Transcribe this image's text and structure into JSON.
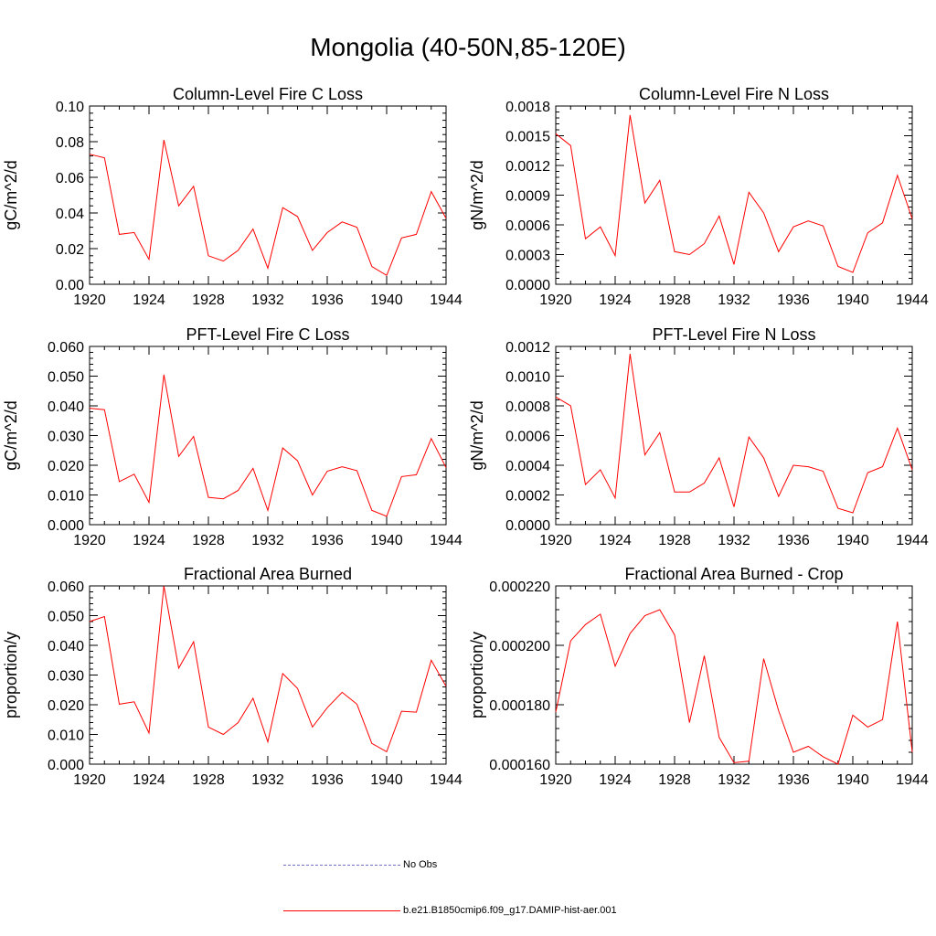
{
  "title": "Mongolia (40-50N,85-120E)",
  "colors": {
    "series": "#ff0000",
    "obs": "#7070c8",
    "axis": "#000000"
  },
  "legend": [
    {
      "label": "No Obs",
      "style": "dashed",
      "color": "#7070c8"
    },
    {
      "label": "b.e21.B1850cmip6.f09_g17.DAMIP-hist-aer.001",
      "style": "solid",
      "color": "#ff0000"
    }
  ],
  "chart_data": [
    {
      "type": "line",
      "title": "Column-Level Fire C Loss",
      "ylabel": "gC/m^2/d",
      "xlim": [
        1920,
        1944
      ],
      "ylim": [
        0,
        0.1
      ],
      "xticks": [
        "1920",
        "1924",
        "1928",
        "1932",
        "1936",
        "1940",
        "1944"
      ],
      "yticks": [
        "0.00",
        "0.02",
        "0.04",
        "0.06",
        "0.08",
        "0.10"
      ],
      "x": [
        1920,
        1921,
        1922,
        1923,
        1924,
        1925,
        1926,
        1927,
        1928,
        1929,
        1930,
        1931,
        1932,
        1933,
        1934,
        1935,
        1936,
        1937,
        1938,
        1939,
        1940,
        1941,
        1942,
        1943,
        1944
      ],
      "series": [
        {
          "name": "b.e21.B1850cmip6.f09_g17.DAMIP-hist-aer.001",
          "values": [
            0.073,
            0.071,
            0.028,
            0.029,
            0.014,
            0.081,
            0.044,
            0.055,
            0.016,
            0.013,
            0.019,
            0.031,
            0.009,
            0.043,
            0.038,
            0.019,
            0.029,
            0.035,
            0.032,
            0.01,
            0.005,
            0.026,
            0.028,
            0.052,
            0.037
          ]
        }
      ]
    },
    {
      "type": "line",
      "title": "Column-Level Fire N Loss",
      "ylabel": "gN/m^2/d",
      "xlim": [
        1920,
        1944
      ],
      "ylim": [
        0,
        0.0018
      ],
      "xticks": [
        "1920",
        "1924",
        "1928",
        "1932",
        "1936",
        "1940",
        "1944"
      ],
      "yticks": [
        "0.0000",
        "0.0003",
        "0.0006",
        "0.0009",
        "0.0012",
        "0.0015",
        "0.0018"
      ],
      "x": [
        1920,
        1921,
        1922,
        1923,
        1924,
        1925,
        1926,
        1927,
        1928,
        1929,
        1930,
        1931,
        1932,
        1933,
        1934,
        1935,
        1936,
        1937,
        1938,
        1939,
        1940,
        1941,
        1942,
        1943,
        1944
      ],
      "series": [
        {
          "name": "b.e21.B1850cmip6.f09_g17.DAMIP-hist-aer.001",
          "values": [
            0.00152,
            0.0014,
            0.00046,
            0.00058,
            0.00029,
            0.00171,
            0.00082,
            0.00105,
            0.00033,
            0.0003,
            0.00041,
            0.00069,
            0.0002,
            0.00093,
            0.00072,
            0.00033,
            0.00058,
            0.00064,
            0.00059,
            0.00018,
            0.00012,
            0.00052,
            0.00062,
            0.0011,
            0.00066
          ]
        }
      ]
    },
    {
      "type": "line",
      "title": "PFT-Level Fire C Loss",
      "ylabel": "gC/m^2/d",
      "xlim": [
        1920,
        1944
      ],
      "ylim": [
        0,
        0.06
      ],
      "xticks": [
        "1920",
        "1924",
        "1928",
        "1932",
        "1936",
        "1940",
        "1944"
      ],
      "yticks": [
        "0.000",
        "0.010",
        "0.020",
        "0.030",
        "0.040",
        "0.050",
        "0.060"
      ],
      "x": [
        1920,
        1921,
        1922,
        1923,
        1924,
        1925,
        1926,
        1927,
        1928,
        1929,
        1930,
        1931,
        1932,
        1933,
        1934,
        1935,
        1936,
        1937,
        1938,
        1939,
        1940,
        1941,
        1942,
        1943,
        1944
      ],
      "series": [
        {
          "name": "b.e21.B1850cmip6.f09_g17.DAMIP-hist-aer.001",
          "values": [
            0.0392,
            0.0387,
            0.0145,
            0.017,
            0.0075,
            0.0505,
            0.023,
            0.0297,
            0.0092,
            0.0087,
            0.0115,
            0.019,
            0.0048,
            0.0258,
            0.0215,
            0.01,
            0.018,
            0.0195,
            0.0182,
            0.0048,
            0.0028,
            0.0162,
            0.0168,
            0.029,
            0.0192
          ]
        }
      ]
    },
    {
      "type": "line",
      "title": "PFT-Level Fire N Loss",
      "ylabel": "gN/m^2/d",
      "xlim": [
        1920,
        1944
      ],
      "ylim": [
        0,
        0.0012
      ],
      "xticks": [
        "1920",
        "1924",
        "1928",
        "1932",
        "1936",
        "1940",
        "1944"
      ],
      "yticks": [
        "0.0000",
        "0.0002",
        "0.0004",
        "0.0006",
        "0.0008",
        "0.0010",
        "0.0012"
      ],
      "x": [
        1920,
        1921,
        1922,
        1923,
        1924,
        1925,
        1926,
        1927,
        1928,
        1929,
        1930,
        1931,
        1932,
        1933,
        1934,
        1935,
        1936,
        1937,
        1938,
        1939,
        1940,
        1941,
        1942,
        1943,
        1944
      ],
      "series": [
        {
          "name": "b.e21.B1850cmip6.f09_g17.DAMIP-hist-aer.001",
          "values": [
            0.00086,
            0.0008,
            0.00027,
            0.00037,
            0.00018,
            0.00115,
            0.00047,
            0.00062,
            0.00022,
            0.00022,
            0.00028,
            0.00045,
            0.00012,
            0.00059,
            0.00045,
            0.00019,
            0.0004,
            0.00039,
            0.00036,
            0.00011,
            8e-05,
            0.00035,
            0.00039,
            0.00065,
            0.00037
          ]
        }
      ]
    },
    {
      "type": "line",
      "title": "Fractional Area Burned",
      "ylabel": "proportion/y",
      "xlim": [
        1920,
        1944
      ],
      "ylim": [
        0,
        0.06
      ],
      "xticks": [
        "1920",
        "1924",
        "1928",
        "1932",
        "1936",
        "1940",
        "1944"
      ],
      "yticks": [
        "0.000",
        "0.010",
        "0.020",
        "0.030",
        "0.040",
        "0.050",
        "0.060"
      ],
      "x": [
        1920,
        1921,
        1922,
        1923,
        1924,
        1925,
        1926,
        1927,
        1928,
        1929,
        1930,
        1931,
        1932,
        1933,
        1934,
        1935,
        1936,
        1937,
        1938,
        1939,
        1940,
        1941,
        1942,
        1943,
        1944
      ],
      "series": [
        {
          "name": "b.e21.B1850cmip6.f09_g17.DAMIP-hist-aer.001",
          "values": [
            0.048,
            0.0497,
            0.0202,
            0.021,
            0.0105,
            0.06,
            0.0323,
            0.0412,
            0.0125,
            0.01,
            0.014,
            0.0222,
            0.0075,
            0.0305,
            0.0255,
            0.0125,
            0.019,
            0.0242,
            0.0202,
            0.007,
            0.0042,
            0.0178,
            0.0175,
            0.035,
            0.0262
          ]
        }
      ]
    },
    {
      "type": "line",
      "title": "Fractional Area Burned - Crop",
      "ylabel": "proportion/y",
      "xlim": [
        1920,
        1944
      ],
      "ylim": [
        0.00016,
        0.00022
      ],
      "xticks": [
        "1920",
        "1924",
        "1928",
        "1932",
        "1936",
        "1940",
        "1944"
      ],
      "yticks": [
        "0.000160",
        "0.000180",
        "0.000200",
        "0.000220"
      ],
      "x": [
        1920,
        1921,
        1922,
        1923,
        1924,
        1925,
        1926,
        1927,
        1928,
        1929,
        1930,
        1931,
        1932,
        1933,
        1934,
        1935,
        1936,
        1937,
        1938,
        1939,
        1940,
        1941,
        1942,
        1943,
        1944
      ],
      "series": [
        {
          "name": "b.e21.B1850cmip6.f09_g17.DAMIP-hist-aer.001",
          "values": [
            0.0001775,
            0.0002015,
            0.000207,
            0.0002105,
            0.000193,
            0.000204,
            0.00021,
            0.000212,
            0.0002035,
            0.000174,
            0.0001965,
            0.000169,
            0.0001605,
            0.000161,
            0.0001955,
            0.000178,
            0.000164,
            0.000166,
            0.0001625,
            0.00016,
            0.0001765,
            0.0001725,
            0.000175,
            0.000208,
            0.000164
          ]
        }
      ]
    }
  ]
}
